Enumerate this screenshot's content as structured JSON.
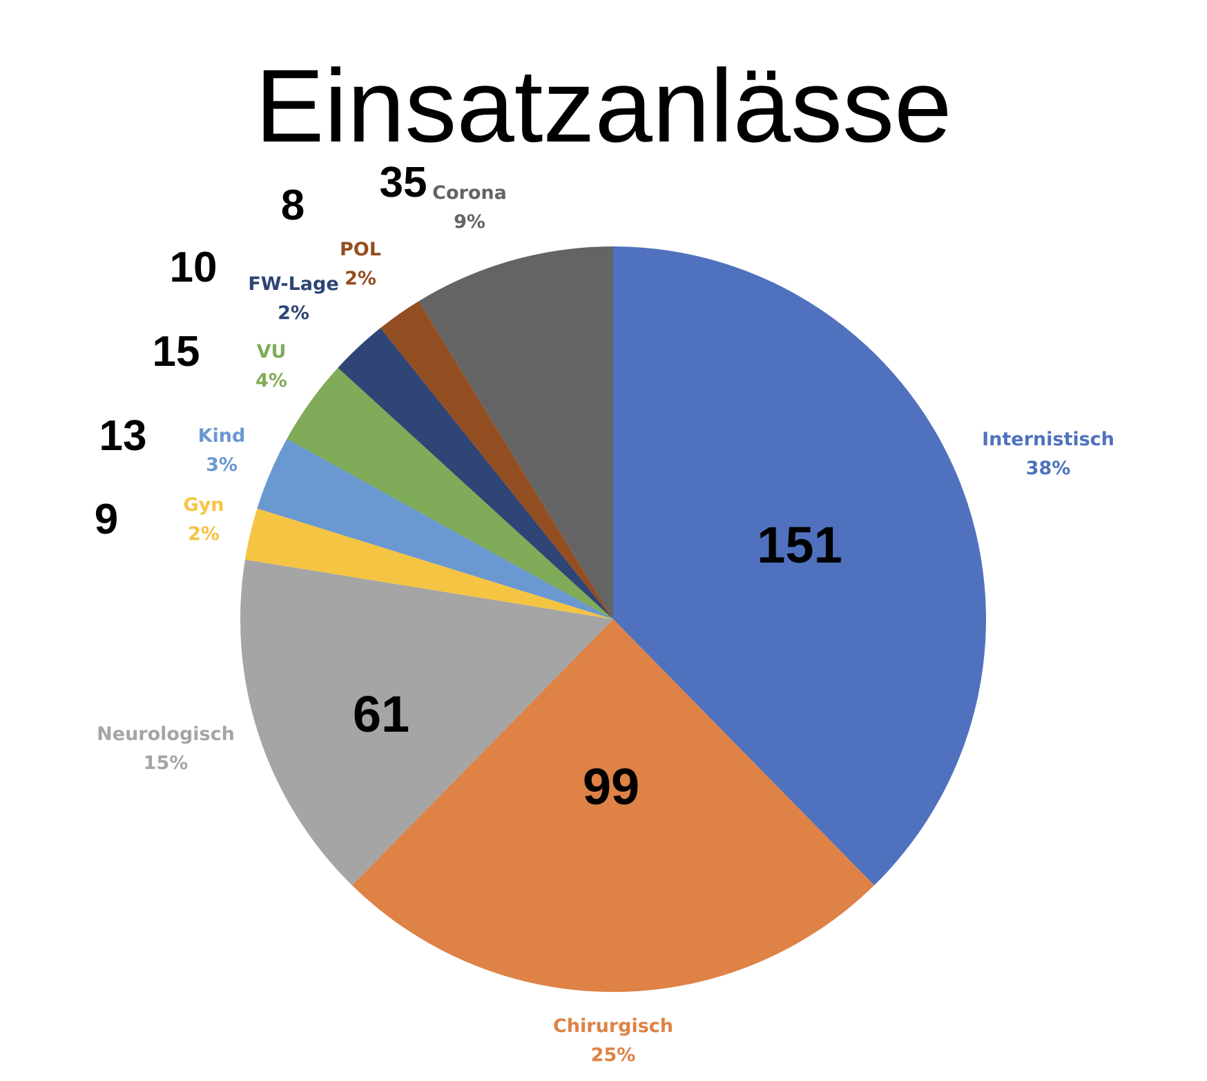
{
  "chart_data": {
    "type": "pie",
    "title": "Einsatzanlässe",
    "start_angle_deg": 0,
    "direction": "clockwise",
    "slices": [
      {
        "name": "Internistisch",
        "value": 151,
        "percent": "38%",
        "color": "#5072BE"
      },
      {
        "name": "Chirurgisch",
        "value": 99,
        "percent": "25%",
        "color": "#DE8246"
      },
      {
        "name": "Neurologisch",
        "value": 61,
        "percent": "15%",
        "color": "#A5A5A5"
      },
      {
        "name": "Gyn",
        "value": 9,
        "percent": "2%",
        "color": "#F5C443"
      },
      {
        "name": "Kind",
        "value": 13,
        "percent": "3%",
        "color": "#6A98D0"
      },
      {
        "name": "VU",
        "value": 15,
        "percent": "4%",
        "color": "#80AB58"
      },
      {
        "name": "FW-Lage",
        "value": 10,
        "percent": "2%",
        "color": "#2E4575"
      },
      {
        "name": "POL",
        "value": 8,
        "percent": "2%",
        "color": "#934E22"
      },
      {
        "name": "Corona",
        "value": 35,
        "percent": "9%",
        "color": "#646464"
      }
    ]
  }
}
